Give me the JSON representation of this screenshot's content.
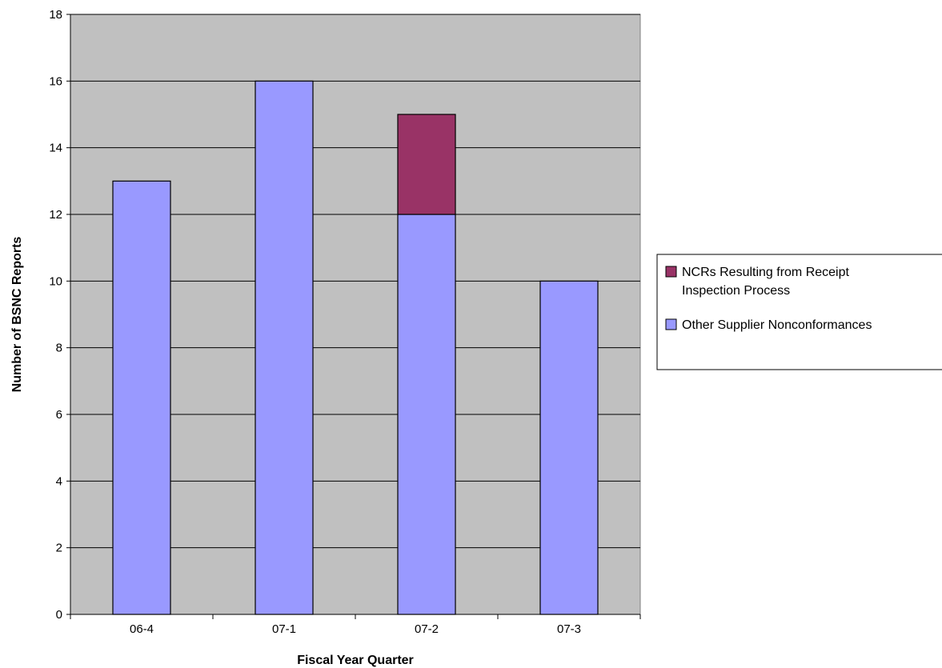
{
  "chart_data": {
    "type": "bar",
    "stacked": true,
    "title": "",
    "xlabel": "Fiscal Year Quarter",
    "ylabel": "Number of BSNC Reports",
    "categories": [
      "06-4",
      "07-1",
      "07-2",
      "07-3"
    ],
    "ylim": [
      0,
      18
    ],
    "yticks": [
      0,
      2,
      4,
      6,
      8,
      10,
      12,
      14,
      16,
      18
    ],
    "grid": true,
    "legend_position": "right",
    "series": [
      {
        "name": "Other Supplier Nonconformances",
        "values": [
          13,
          16,
          12,
          10
        ],
        "color": "#9999ff"
      },
      {
        "name": "NCRs Resulting from Receipt Inspection Process",
        "values": [
          0,
          0,
          3,
          0
        ],
        "color": "#993366"
      }
    ],
    "legend": [
      {
        "lines": [
          "NCRs Resulting from Receipt",
          "Inspection Process"
        ],
        "color": "#993366"
      },
      {
        "lines": [
          "Other Supplier Nonconformances"
        ],
        "color": "#9999ff"
      }
    ],
    "plot_background": "#c0c0c0"
  }
}
